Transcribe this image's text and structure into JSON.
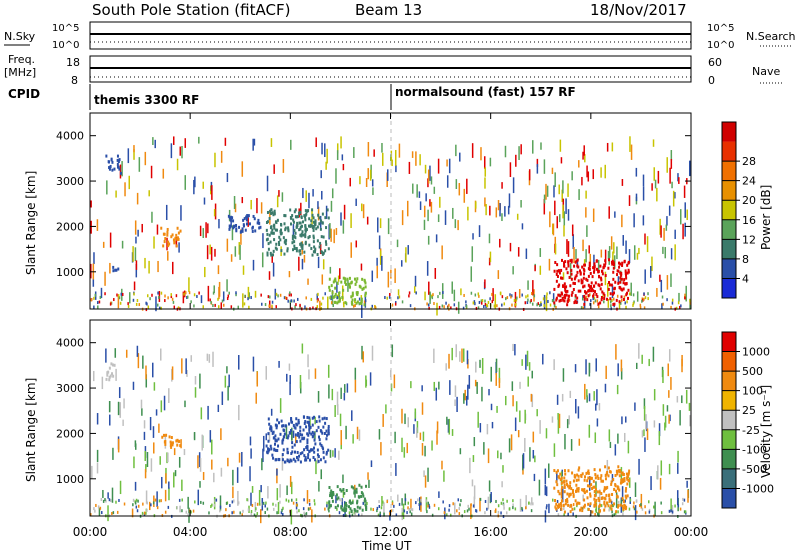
{
  "header": {
    "station": "South Pole Station (fitACF)",
    "beam": "Beam 13",
    "date": "18/Nov/2017"
  },
  "noise_panel": {
    "left_label": "N.Sky",
    "right_label": "N.Search",
    "left_ticks": [
      "10^5",
      "10^0"
    ],
    "right_ticks": [
      "10^5",
      "10^0"
    ]
  },
  "freq_panel": {
    "left_label_line1": "Freq.",
    "left_label_line2": "[MHz]",
    "left_ticks": [
      "18",
      "8"
    ],
    "right_label": "Nave",
    "right_ticks": [
      "60",
      "0"
    ]
  },
  "cpid_panel": {
    "label": "CPID",
    "modes": [
      "themis 3300 RF",
      "normalsound (fast) 157 RF"
    ]
  },
  "power_colorbar": {
    "title": "Power [dB]",
    "ticks": [
      "4",
      "8",
      "12",
      "16",
      "20",
      "24",
      "28"
    ],
    "colors": [
      "#1a2bd6",
      "#2a4fa8",
      "#3a7a6a",
      "#5aa35a",
      "#c8c400",
      "#e89000",
      "#f07000",
      "#e83000",
      "#d00000"
    ]
  },
  "velocity_colorbar": {
    "title": "Velocity [m s⁻¹]",
    "ticks": [
      "1000",
      "500",
      "100",
      "25",
      "-25",
      "-100",
      "-500",
      "-1000"
    ],
    "colors": [
      "#2a4fa8",
      "#3a6f7a",
      "#3f8f50",
      "#6fbf3f",
      "#c0c0c0",
      "#f0b400",
      "#f08a10",
      "#f06000",
      "#e00000"
    ]
  },
  "chart_data": [
    {
      "type": "heatmap",
      "name": "power",
      "ylabel": "Slant Range [km]",
      "xlabel": "Time UT",
      "x_ticks": [
        "00:00",
        "04:00",
        "08:00",
        "12:00",
        "16:00",
        "20:00",
        "00:00"
      ],
      "y_ticks": [
        "1000",
        "2000",
        "3000",
        "4000"
      ],
      "x_range_hours": [
        0,
        24
      ],
      "y_range_km": [
        180,
        4500
      ],
      "features": [
        {
          "hours": [
            0.6,
            1.2
          ],
          "range_km": [
            3200,
            3600
          ],
          "level": "blue"
        },
        {
          "hours": [
            0.8,
            1.1
          ],
          "range_km": [
            950,
            1150
          ],
          "level": "blue"
        },
        {
          "hours": [
            2.8,
            3.6
          ],
          "range_km": [
            1600,
            2000
          ],
          "level": "orange"
        },
        {
          "hours": [
            5.5,
            6.8
          ],
          "range_km": [
            1900,
            2300
          ],
          "level": "blue"
        },
        {
          "hours": [
            7.0,
            9.5
          ],
          "range_km": [
            1400,
            2400
          ],
          "level": "blue-green"
        },
        {
          "hours": [
            9.5,
            11.0
          ],
          "range_km": [
            300,
            900
          ],
          "level": "green-yellow"
        },
        {
          "hours": [
            18.5,
            21.5
          ],
          "range_km": [
            300,
            1300
          ],
          "level": "red"
        }
      ]
    },
    {
      "type": "heatmap",
      "name": "velocity",
      "ylabel": "Slant Range [km]",
      "xlabel": "Time UT",
      "x_ticks": [
        "00:00",
        "04:00",
        "08:00",
        "12:00",
        "16:00",
        "20:00",
        "00:00"
      ],
      "y_ticks": [
        "1000",
        "2000",
        "3000",
        "4000"
      ],
      "x_range_hours": [
        0,
        24
      ],
      "y_range_km": [
        180,
        4500
      ],
      "features": [
        {
          "hours": [
            0.6,
            1.0
          ],
          "range_km": [
            3200,
            3600
          ],
          "level": "grey"
        },
        {
          "hours": [
            2.8,
            3.6
          ],
          "range_km": [
            1700,
            2000
          ],
          "level": "orange"
        },
        {
          "hours": [
            7.0,
            9.5
          ],
          "range_km": [
            1400,
            2400
          ],
          "level": "blue"
        },
        {
          "hours": [
            9.5,
            11.0
          ],
          "range_km": [
            300,
            900
          ],
          "level": "green"
        },
        {
          "hours": [
            18.5,
            21.5
          ],
          "range_km": [
            300,
            1300
          ],
          "level": "orange"
        }
      ]
    }
  ]
}
